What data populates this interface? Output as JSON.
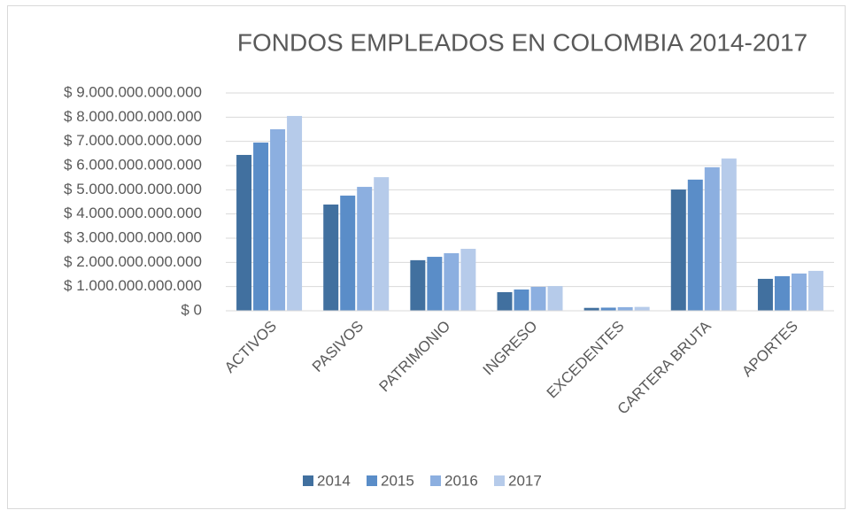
{
  "chart_data": {
    "type": "bar",
    "title": "FONDOS EMPLEADOS EN COLOMBIA 2014-2017",
    "categories": [
      "ACTIVOS",
      "PASIVOS",
      "PATRIMONIO",
      "INGRESO",
      "EXCEDENTES",
      "CARTERA BRUTA",
      "APORTES"
    ],
    "series": [
      {
        "name": "2014",
        "color": "#41709f",
        "values": [
          6440000000000,
          4390000000000,
          2090000000000,
          770000000000,
          120000000000,
          5010000000000,
          1320000000000
        ]
      },
      {
        "name": "2015",
        "color": "#5a8dc8",
        "values": [
          6950000000000,
          4760000000000,
          2230000000000,
          880000000000,
          130000000000,
          5420000000000,
          1430000000000
        ]
      },
      {
        "name": "2016",
        "color": "#8cafe0",
        "values": [
          7500000000000,
          5120000000000,
          2380000000000,
          990000000000,
          150000000000,
          5930000000000,
          1540000000000
        ]
      },
      {
        "name": "2017",
        "color": "#b6cbea",
        "values": [
          8050000000000,
          5520000000000,
          2560000000000,
          1020000000000,
          160000000000,
          6290000000000,
          1650000000000
        ]
      }
    ],
    "ylim": [
      0,
      9000000000000
    ],
    "yticks": [
      {
        "value": 0,
        "label": "$ 0"
      },
      {
        "value": 1000000000000,
        "label": "$ 1.000.000.000.000"
      },
      {
        "value": 2000000000000,
        "label": "$ 2.000.000.000.000"
      },
      {
        "value": 3000000000000,
        "label": "$ 3.000.000.000.000"
      },
      {
        "value": 4000000000000,
        "label": "$ 4.000.000.000.000"
      },
      {
        "value": 5000000000000,
        "label": "$ 5.000.000.000.000"
      },
      {
        "value": 6000000000000,
        "label": "$ 6.000.000.000.000"
      },
      {
        "value": 7000000000000,
        "label": "$ 7.000.000.000.000"
      },
      {
        "value": 8000000000000,
        "label": "$ 8.000.000.000.000"
      },
      {
        "value": 9000000000000,
        "label": "$ 9.000.000.000.000"
      }
    ],
    "grid": true,
    "legend": "bottom"
  }
}
